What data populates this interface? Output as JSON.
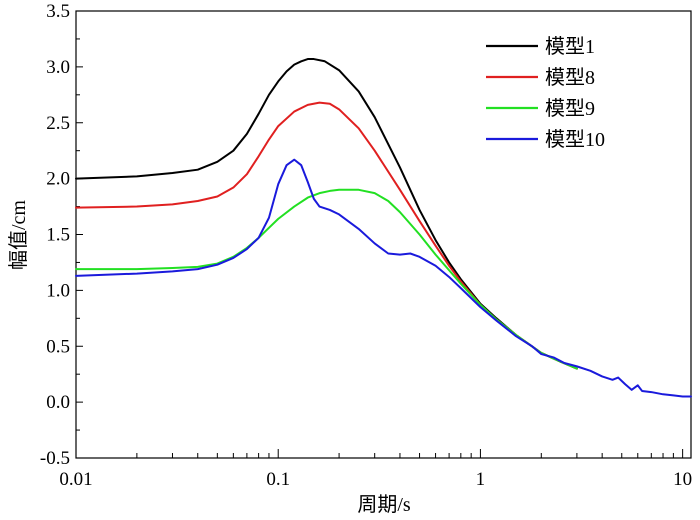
{
  "chart_data": {
    "type": "line",
    "title": "",
    "xlabel": "周期/s",
    "ylabel": "幅值/cm",
    "xscale": "log",
    "xlim": [
      0.01,
      11
    ],
    "ylim": [
      -0.5,
      3.5
    ],
    "xticks": [
      {
        "value": 0.01,
        "label": "0.01"
      },
      {
        "value": 0.1,
        "label": "0.1"
      },
      {
        "value": 1,
        "label": "1"
      },
      {
        "value": 10,
        "label": "10"
      }
    ],
    "yticks": [
      {
        "value": -0.5,
        "label": "-0.5"
      },
      {
        "value": 0.0,
        "label": "0.0"
      },
      {
        "value": 0.5,
        "label": "0.5"
      },
      {
        "value": 1.0,
        "label": "1.0"
      },
      {
        "value": 1.5,
        "label": "1.5"
      },
      {
        "value": 2.0,
        "label": "2.0"
      },
      {
        "value": 2.5,
        "label": "2.5"
      },
      {
        "value": 3.0,
        "label": "3.0"
      },
      {
        "value": 3.5,
        "label": "3.5"
      }
    ],
    "grid": false,
    "legend_position": "top-right",
    "series": [
      {
        "name": "模型1",
        "color": "#000000",
        "points": [
          [
            0.01,
            2.0
          ],
          [
            0.02,
            2.02
          ],
          [
            0.03,
            2.05
          ],
          [
            0.04,
            2.08
          ],
          [
            0.05,
            2.15
          ],
          [
            0.06,
            2.25
          ],
          [
            0.07,
            2.4
          ],
          [
            0.08,
            2.58
          ],
          [
            0.09,
            2.75
          ],
          [
            0.1,
            2.87
          ],
          [
            0.11,
            2.96
          ],
          [
            0.12,
            3.02
          ],
          [
            0.13,
            3.05
          ],
          [
            0.14,
            3.07
          ],
          [
            0.15,
            3.07
          ],
          [
            0.17,
            3.05
          ],
          [
            0.2,
            2.97
          ],
          [
            0.25,
            2.78
          ],
          [
            0.3,
            2.55
          ],
          [
            0.4,
            2.1
          ],
          [
            0.5,
            1.72
          ],
          [
            0.6,
            1.45
          ],
          [
            0.7,
            1.25
          ],
          [
            0.8,
            1.1
          ],
          [
            1.0,
            0.88
          ],
          [
            1.2,
            0.75
          ],
          [
            1.5,
            0.6
          ],
          [
            2.0,
            0.44
          ],
          [
            2.5,
            0.36
          ],
          [
            3.0,
            0.3
          ]
        ]
      },
      {
        "name": "模型8",
        "color": "#e02020",
        "points": [
          [
            0.01,
            1.74
          ],
          [
            0.02,
            1.75
          ],
          [
            0.03,
            1.77
          ],
          [
            0.04,
            1.8
          ],
          [
            0.05,
            1.84
          ],
          [
            0.06,
            1.92
          ],
          [
            0.07,
            2.04
          ],
          [
            0.08,
            2.2
          ],
          [
            0.09,
            2.35
          ],
          [
            0.1,
            2.47
          ],
          [
            0.12,
            2.6
          ],
          [
            0.14,
            2.66
          ],
          [
            0.16,
            2.68
          ],
          [
            0.18,
            2.67
          ],
          [
            0.2,
            2.62
          ],
          [
            0.25,
            2.45
          ],
          [
            0.3,
            2.25
          ],
          [
            0.4,
            1.9
          ],
          [
            0.5,
            1.62
          ],
          [
            0.6,
            1.4
          ],
          [
            0.7,
            1.22
          ],
          [
            0.8,
            1.08
          ],
          [
            1.0,
            0.87
          ],
          [
            1.2,
            0.74
          ],
          [
            1.5,
            0.6
          ],
          [
            2.0,
            0.44
          ],
          [
            2.5,
            0.36
          ],
          [
            3.0,
            0.3
          ]
        ]
      },
      {
        "name": "模型9",
        "color": "#22e022",
        "points": [
          [
            0.01,
            1.19
          ],
          [
            0.02,
            1.19
          ],
          [
            0.03,
            1.2
          ],
          [
            0.04,
            1.21
          ],
          [
            0.05,
            1.24
          ],
          [
            0.06,
            1.3
          ],
          [
            0.07,
            1.38
          ],
          [
            0.08,
            1.47
          ],
          [
            0.09,
            1.56
          ],
          [
            0.1,
            1.64
          ],
          [
            0.12,
            1.75
          ],
          [
            0.14,
            1.83
          ],
          [
            0.16,
            1.87
          ],
          [
            0.18,
            1.89
          ],
          [
            0.2,
            1.9
          ],
          [
            0.25,
            1.9
          ],
          [
            0.3,
            1.87
          ],
          [
            0.35,
            1.8
          ],
          [
            0.4,
            1.7
          ],
          [
            0.5,
            1.5
          ],
          [
            0.6,
            1.32
          ],
          [
            0.7,
            1.18
          ],
          [
            0.8,
            1.06
          ],
          [
            1.0,
            0.87
          ],
          [
            1.2,
            0.74
          ],
          [
            1.5,
            0.6
          ],
          [
            2.0,
            0.44
          ],
          [
            2.5,
            0.36
          ],
          [
            3.0,
            0.3
          ]
        ]
      },
      {
        "name": "模型10",
        "color": "#1a1adc",
        "points": [
          [
            0.01,
            1.13
          ],
          [
            0.02,
            1.15
          ],
          [
            0.03,
            1.17
          ],
          [
            0.04,
            1.19
          ],
          [
            0.05,
            1.23
          ],
          [
            0.06,
            1.29
          ],
          [
            0.07,
            1.37
          ],
          [
            0.08,
            1.47
          ],
          [
            0.09,
            1.65
          ],
          [
            0.1,
            1.95
          ],
          [
            0.11,
            2.12
          ],
          [
            0.12,
            2.17
          ],
          [
            0.13,
            2.12
          ],
          [
            0.14,
            1.97
          ],
          [
            0.15,
            1.82
          ],
          [
            0.16,
            1.75
          ],
          [
            0.18,
            1.72
          ],
          [
            0.2,
            1.68
          ],
          [
            0.25,
            1.55
          ],
          [
            0.3,
            1.42
          ],
          [
            0.35,
            1.33
          ],
          [
            0.4,
            1.32
          ],
          [
            0.45,
            1.33
          ],
          [
            0.5,
            1.3
          ],
          [
            0.6,
            1.22
          ],
          [
            0.7,
            1.12
          ],
          [
            0.8,
            1.02
          ],
          [
            1.0,
            0.85
          ],
          [
            1.2,
            0.73
          ],
          [
            1.5,
            0.59
          ],
          [
            1.8,
            0.5
          ],
          [
            2.0,
            0.43
          ],
          [
            2.3,
            0.4
          ],
          [
            2.6,
            0.35
          ],
          [
            3.0,
            0.32
          ],
          [
            3.5,
            0.28
          ],
          [
            4.0,
            0.23
          ],
          [
            4.5,
            0.2
          ],
          [
            4.8,
            0.22
          ],
          [
            5.2,
            0.16
          ],
          [
            5.6,
            0.11
          ],
          [
            6.0,
            0.15
          ],
          [
            6.3,
            0.1
          ],
          [
            7.0,
            0.09
          ],
          [
            8.0,
            0.07
          ],
          [
            9.0,
            0.06
          ],
          [
            10.0,
            0.05
          ],
          [
            11.0,
            0.05
          ]
        ]
      }
    ]
  }
}
